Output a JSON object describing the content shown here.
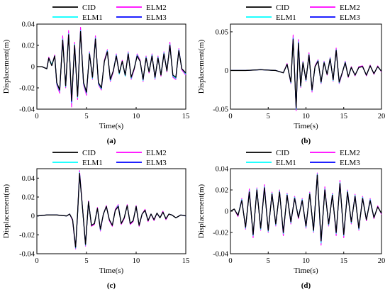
{
  "colors": {
    "CID": "#000000",
    "ELM2": "#ff00ff",
    "ELM1": "#00ffff",
    "ELM3": "#0000ff"
  },
  "chart_data": [
    {
      "type": "line",
      "panel_label": "(a)",
      "xlabel": "Time(s)",
      "ylabel": "Displacement(m)",
      "xlim": [
        0,
        15
      ],
      "ylim": [
        -0.04,
        0.04
      ],
      "xticks": [
        0,
        5,
        10,
        15
      ],
      "yticks": [
        -0.04,
        -0.02,
        0,
        0.02,
        0.04
      ],
      "ytick_labels": [
        "-0.04",
        "-0.02",
        "0",
        "0.02",
        "0.04"
      ],
      "legend": {
        "placement": "top",
        "entries": [
          "CID",
          "ELM2",
          "ELM1",
          "ELM3"
        ]
      },
      "grid": false,
      "x": [
        0,
        0.5,
        1,
        1.2,
        1.5,
        1.8,
        2,
        2.3,
        2.6,
        2.9,
        3.2,
        3.5,
        3.8,
        4.1,
        4.4,
        4.7,
        5,
        5.3,
        5.6,
        5.9,
        6.2,
        6.5,
        6.8,
        7.1,
        7.4,
        7.7,
        8,
        8.3,
        8.6,
        8.9,
        9.2,
        9.5,
        9.8,
        10.1,
        10.4,
        10.7,
        11,
        11.3,
        11.6,
        11.9,
        12.2,
        12.5,
        12.8,
        13.1,
        13.4,
        13.7,
        14,
        14.3,
        14.6,
        15
      ],
      "series": [
        {
          "name": "CID",
          "values": [
            0,
            0,
            -0.002,
            0.008,
            0.001,
            0.01,
            -0.015,
            -0.022,
            0.025,
            -0.018,
            0.03,
            -0.032,
            0.02,
            -0.028,
            0.033,
            -0.015,
            -0.024,
            0.012,
            -0.01,
            0.026,
            -0.015,
            -0.02,
            0.005,
            0.014,
            -0.012,
            -0.004,
            0.01,
            -0.006,
            0.005,
            -0.008,
            0.012,
            -0.01,
            -0.002,
            0.01,
            0.005,
            -0.012,
            0.008,
            -0.005,
            0.01,
            -0.01,
            0.008,
            -0.008,
            0.012,
            -0.004,
            0.02,
            -0.008,
            -0.01,
            0.015,
            -0.002,
            -0.006
          ]
        },
        {
          "name": "ELM2",
          "values": [
            0,
            0,
            -0.002,
            0.009,
            0.001,
            0.011,
            -0.017,
            -0.025,
            0.029,
            -0.02,
            0.034,
            -0.038,
            0.023,
            -0.031,
            0.037,
            -0.017,
            -0.027,
            0.014,
            -0.012,
            0.029,
            -0.017,
            -0.022,
            0.006,
            0.016,
            -0.014,
            -0.005,
            0.012,
            -0.007,
            0.006,
            -0.009,
            0.014,
            -0.012,
            -0.003,
            0.012,
            0.006,
            -0.014,
            0.01,
            -0.006,
            0.012,
            -0.012,
            0.01,
            -0.009,
            0.014,
            -0.005,
            0.023,
            -0.01,
            -0.012,
            0.017,
            -0.003,
            -0.008
          ]
        },
        {
          "name": "ELM1",
          "values": [
            0,
            0,
            -0.002,
            0.008,
            0.002,
            0.01,
            -0.016,
            -0.023,
            0.026,
            -0.019,
            0.031,
            -0.034,
            0.021,
            -0.029,
            0.034,
            -0.016,
            -0.025,
            0.013,
            -0.011,
            0.027,
            -0.016,
            -0.021,
            0.005,
            0.015,
            -0.013,
            -0.004,
            0.011,
            -0.007,
            0.005,
            -0.009,
            0.013,
            -0.011,
            -0.002,
            0.011,
            0.005,
            -0.013,
            0.009,
            -0.005,
            0.011,
            -0.011,
            0.009,
            -0.008,
            0.013,
            -0.004,
            0.021,
            -0.009,
            -0.011,
            0.016,
            -0.002,
            -0.007
          ]
        },
        {
          "name": "ELM3",
          "values": [
            0,
            0,
            -0.002,
            0.008,
            0.001,
            0.01,
            -0.015,
            -0.022,
            0.025,
            -0.018,
            0.03,
            -0.033,
            0.02,
            -0.028,
            0.033,
            -0.015,
            -0.024,
            0.012,
            -0.01,
            0.026,
            -0.015,
            -0.02,
            0.005,
            0.014,
            -0.012,
            -0.004,
            0.01,
            -0.006,
            0.005,
            -0.008,
            0.012,
            -0.01,
            -0.002,
            0.01,
            0.005,
            -0.012,
            0.008,
            -0.005,
            0.01,
            -0.01,
            0.008,
            -0.008,
            0.012,
            -0.004,
            0.02,
            -0.008,
            -0.01,
            0.015,
            -0.002,
            -0.006
          ]
        }
      ]
    },
    {
      "type": "line",
      "panel_label": "(b)",
      "xlabel": "Time(s)",
      "ylabel": "Displacement(m)",
      "xlim": [
        0,
        20
      ],
      "ylim": [
        -0.05,
        0.06
      ],
      "xticks": [
        0,
        5,
        10,
        15,
        20
      ],
      "yticks": [
        -0.05,
        0,
        0.05
      ],
      "ytick_labels": [
        "-0.05",
        "0",
        "0.05"
      ],
      "legend": {
        "placement": "top",
        "entries": [
          "CID",
          "ELM2",
          "ELM1",
          "ELM3"
        ]
      },
      "grid": false,
      "x": [
        0,
        2,
        4,
        6,
        7,
        7.5,
        8,
        8.3,
        8.7,
        9,
        9.3,
        9.6,
        10,
        10.4,
        10.8,
        11.2,
        11.6,
        12,
        12.4,
        12.8,
        13.2,
        13.6,
        14,
        14.4,
        14.8,
        15.2,
        15.6,
        16,
        16.5,
        17,
        17.5,
        18,
        18.5,
        19,
        19.5,
        20
      ],
      "series": [
        {
          "name": "CID",
          "values": [
            0,
            0,
            0.001,
            0,
            -0.003,
            0.008,
            -0.015,
            0.04,
            -0.048,
            0.035,
            -0.02,
            0.01,
            -0.012,
            0.02,
            -0.025,
            0.005,
            0.012,
            -0.015,
            0.01,
            -0.005,
            0.015,
            -0.012,
            0.026,
            -0.015,
            -0.003,
            0.01,
            -0.008,
            0.004,
            -0.006,
            0.004,
            0.005,
            -0.006,
            0.006,
            -0.004,
            0.005,
            -0.001
          ]
        },
        {
          "name": "ELM2",
          "values": [
            0,
            0,
            0.001,
            0,
            -0.003,
            0.009,
            -0.017,
            0.046,
            -0.052,
            0.04,
            -0.022,
            0.012,
            -0.014,
            0.023,
            -0.028,
            0.006,
            0.014,
            -0.017,
            0.012,
            -0.006,
            0.017,
            -0.014,
            0.029,
            -0.017,
            -0.004,
            0.012,
            -0.009,
            0.005,
            -0.007,
            0.005,
            0.006,
            -0.007,
            0.007,
            -0.005,
            0.006,
            -0.002
          ]
        },
        {
          "name": "ELM1",
          "values": [
            0,
            0,
            0.001,
            0,
            -0.003,
            0.008,
            -0.016,
            0.042,
            -0.05,
            0.037,
            -0.021,
            0.011,
            -0.013,
            0.021,
            -0.026,
            0.005,
            0.013,
            -0.016,
            0.011,
            -0.005,
            0.016,
            -0.013,
            0.027,
            -0.016,
            -0.003,
            0.011,
            -0.008,
            0.004,
            -0.006,
            0.004,
            0.005,
            -0.006,
            0.006,
            -0.004,
            0.005,
            -0.001
          ]
        },
        {
          "name": "ELM3",
          "values": [
            0,
            0,
            0.001,
            0,
            -0.003,
            0.008,
            -0.015,
            0.041,
            -0.049,
            0.036,
            -0.02,
            0.01,
            -0.012,
            0.02,
            -0.025,
            0.005,
            0.012,
            -0.015,
            0.01,
            -0.005,
            0.015,
            -0.012,
            0.026,
            -0.015,
            -0.003,
            0.01,
            -0.008,
            0.004,
            -0.006,
            0.004,
            0.005,
            -0.006,
            0.006,
            -0.004,
            0.005,
            -0.001
          ]
        }
      ]
    },
    {
      "type": "line",
      "panel_label": "(c)",
      "xlabel": "Time(s)",
      "ylabel": "Displacement(m)",
      "xlim": [
        0,
        15
      ],
      "ylim": [
        -0.04,
        0.05
      ],
      "xticks": [
        0,
        5,
        10,
        15
      ],
      "yticks": [
        -0.04,
        -0.02,
        0,
        0.02,
        0.04
      ],
      "ytick_labels": [
        "-0.04",
        "-0.02",
        "0",
        "0.02",
        "0.04"
      ],
      "legend": {
        "placement": "top",
        "entries": [
          "CID",
          "ELM2",
          "ELM1",
          "ELM3"
        ]
      },
      "grid": false,
      "x": [
        0,
        1,
        2,
        3,
        3.3,
        3.6,
        3.9,
        4.1,
        4.3,
        4.6,
        4.9,
        5.2,
        5.5,
        5.8,
        6.1,
        6.4,
        6.7,
        7,
        7.3,
        7.6,
        7.9,
        8.2,
        8.5,
        8.8,
        9.1,
        9.4,
        9.7,
        10,
        10.3,
        10.6,
        10.9,
        11.2,
        11.5,
        11.8,
        12.1,
        12.4,
        12.7,
        13,
        13.3,
        13.6,
        14,
        14.5,
        15
      ],
      "series": [
        {
          "name": "CID",
          "values": [
            0,
            0.001,
            0.001,
            0,
            0.002,
            -0.004,
            -0.033,
            0.002,
            0.045,
            0.008,
            -0.03,
            0.015,
            -0.01,
            -0.008,
            0.008,
            -0.014,
            0.002,
            0.01,
            -0.004,
            -0.01,
            0.006,
            0.01,
            -0.008,
            -0.002,
            0.011,
            -0.008,
            -0.005,
            0.01,
            -0.01,
            0.002,
            0.006,
            -0.005,
            0.002,
            -0.004,
            0.003,
            -0.002,
            0.004,
            -0.003,
            0.002,
            0.001,
            -0.002,
            0.001,
            0
          ]
        },
        {
          "name": "ELM2",
          "values": [
            0,
            0.001,
            0.001,
            0,
            0.002,
            -0.005,
            -0.035,
            0.002,
            0.048,
            0.009,
            -0.032,
            0.016,
            -0.011,
            -0.009,
            0.009,
            -0.016,
            0.002,
            0.011,
            -0.005,
            -0.011,
            0.007,
            0.012,
            -0.009,
            -0.003,
            0.012,
            -0.009,
            -0.006,
            0.011,
            -0.011,
            0.002,
            0.007,
            -0.006,
            0.002,
            -0.005,
            0.003,
            -0.002,
            0.005,
            -0.004,
            0.002,
            0.001,
            -0.002,
            0.001,
            0
          ]
        },
        {
          "name": "ELM1",
          "values": [
            0,
            0.001,
            0.001,
            0,
            0.002,
            -0.004,
            -0.034,
            0.002,
            0.046,
            0.008,
            -0.031,
            0.015,
            -0.01,
            -0.008,
            0.008,
            -0.015,
            0.002,
            0.01,
            -0.004,
            -0.01,
            0.006,
            0.011,
            -0.008,
            -0.002,
            0.011,
            -0.008,
            -0.005,
            0.01,
            -0.01,
            0.002,
            0.006,
            -0.005,
            0.002,
            -0.004,
            0.003,
            -0.002,
            0.004,
            -0.003,
            0.002,
            0.001,
            -0.002,
            0.001,
            0
          ]
        },
        {
          "name": "ELM3",
          "values": [
            0,
            0.001,
            0.001,
            0,
            0.002,
            -0.004,
            -0.033,
            0.002,
            0.045,
            0.008,
            -0.03,
            0.015,
            -0.01,
            -0.008,
            0.008,
            -0.014,
            0.002,
            0.01,
            -0.004,
            -0.01,
            0.006,
            0.01,
            -0.008,
            -0.002,
            0.011,
            -0.008,
            -0.005,
            0.01,
            -0.01,
            0.002,
            0.006,
            -0.005,
            0.002,
            -0.004,
            0.003,
            -0.002,
            0.004,
            -0.003,
            0.002,
            0.001,
            -0.002,
            0.001,
            0
          ]
        }
      ]
    },
    {
      "type": "line",
      "panel_label": "(d)",
      "xlabel": "Time(s)",
      "ylabel": "Displacement(m)",
      "xlim": [
        0,
        20
      ],
      "ylim": [
        -0.04,
        0.04
      ],
      "xticks": [
        0,
        5,
        10,
        15,
        20
      ],
      "yticks": [
        -0.04,
        -0.02,
        0,
        0.02,
        0.04
      ],
      "ytick_labels": [
        "-0.04",
        "-0.02",
        "0",
        "0.02",
        "0.04"
      ],
      "legend": {
        "placement": "top",
        "entries": [
          "CID",
          "ELM2",
          "ELM1",
          "ELM3"
        ]
      },
      "grid": false,
      "x": [
        0,
        0.5,
        1,
        1.5,
        2,
        2.5,
        3,
        3.5,
        4,
        4.5,
        5,
        5.5,
        6,
        6.5,
        7,
        7.5,
        8,
        8.5,
        9,
        9.5,
        10,
        10.5,
        11,
        11.5,
        12,
        12.5,
        13,
        13.5,
        14,
        14.5,
        15,
        15.5,
        16,
        16.5,
        17,
        17.5,
        18,
        18.5,
        19,
        19.5,
        20
      ],
      "series": [
        {
          "name": "CID",
          "values": [
            0,
            0.002,
            -0.004,
            0.01,
            -0.015,
            0.018,
            -0.022,
            0.02,
            -0.016,
            0.022,
            -0.018,
            0.016,
            -0.012,
            0.018,
            -0.02,
            0.015,
            -0.01,
            0.012,
            -0.006,
            0.01,
            -0.014,
            0.016,
            -0.018,
            0.034,
            -0.028,
            0.02,
            -0.012,
            0.015,
            -0.02,
            0.026,
            -0.022,
            0.018,
            -0.01,
            0.014,
            -0.016,
            0.012,
            -0.008,
            0.01,
            -0.006,
            0.004,
            -0.002
          ]
        },
        {
          "name": "ELM2",
          "values": [
            0,
            0.002,
            -0.005,
            0.012,
            -0.017,
            0.021,
            -0.025,
            0.022,
            -0.018,
            0.025,
            -0.02,
            0.018,
            -0.014,
            0.02,
            -0.023,
            0.017,
            -0.012,
            0.014,
            -0.007,
            0.012,
            -0.016,
            0.018,
            -0.02,
            0.036,
            -0.032,
            0.023,
            -0.014,
            0.017,
            -0.023,
            0.029,
            -0.025,
            0.02,
            -0.012,
            0.016,
            -0.018,
            0.014,
            -0.009,
            0.012,
            -0.007,
            0.005,
            -0.003
          ]
        },
        {
          "name": "ELM1",
          "values": [
            0,
            0.002,
            -0.004,
            0.011,
            -0.016,
            0.019,
            -0.023,
            0.021,
            -0.017,
            0.023,
            -0.019,
            0.017,
            -0.013,
            0.019,
            -0.021,
            0.016,
            -0.011,
            0.013,
            -0.006,
            0.011,
            -0.015,
            0.017,
            -0.019,
            0.035,
            -0.03,
            0.021,
            -0.013,
            0.016,
            -0.021,
            0.027,
            -0.023,
            0.019,
            -0.011,
            0.015,
            -0.017,
            0.013,
            -0.008,
            0.011,
            -0.006,
            0.004,
            -0.002
          ]
        },
        {
          "name": "ELM3",
          "values": [
            0,
            0.002,
            -0.004,
            0.01,
            -0.015,
            0.018,
            -0.022,
            0.02,
            -0.016,
            0.022,
            -0.018,
            0.016,
            -0.012,
            0.018,
            -0.02,
            0.015,
            -0.01,
            0.012,
            -0.006,
            0.01,
            -0.014,
            0.016,
            -0.018,
            0.034,
            -0.028,
            0.02,
            -0.012,
            0.015,
            -0.02,
            0.026,
            -0.022,
            0.018,
            -0.01,
            0.014,
            -0.016,
            0.012,
            -0.008,
            0.01,
            -0.006,
            0.004,
            -0.002
          ]
        }
      ]
    }
  ]
}
